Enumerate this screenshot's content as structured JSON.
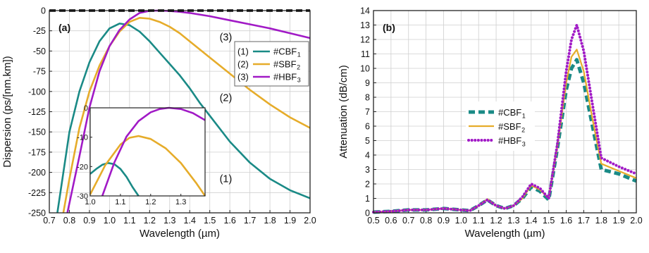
{
  "colors": {
    "cbf": "#1a8a86",
    "sbf": "#e6ac2a",
    "hbf": "#a11ac6",
    "zero": "#000000"
  },
  "chart_data": [
    {
      "type": "line",
      "panel_label": "(a)",
      "xlabel": "Wavelength (µm)",
      "ylabel": "Dispersion (ps/[nm.km])",
      "xlim": [
        0.7,
        2.0
      ],
      "ylim": [
        -250,
        0
      ],
      "xticks": [
        "0.7",
        "0.8",
        "0.9",
        "1.0",
        "1.1",
        "1.2",
        "1.3",
        "1.4",
        "1.5",
        "1.6",
        "1.7",
        "1.8",
        "1.9",
        "2.0"
      ],
      "yticks": [
        "0",
        "-25",
        "-50",
        "-75",
        "-100",
        "-125",
        "-150",
        "-175",
        "-200",
        "-225",
        "-250"
      ],
      "grid": true,
      "legend_position": "top-right",
      "legend": [
        {
          "num": "(1)",
          "name": "#CBF",
          "sub": "1",
          "color": "cbf"
        },
        {
          "num": "(2)",
          "name": "#SBF",
          "sub": "2",
          "color": "sbf"
        },
        {
          "num": "(3)",
          "name": "#HBF",
          "sub": "3",
          "color": "hbf"
        }
      ],
      "annotations": [
        {
          "text": "(3)",
          "x": 1.58,
          "y": -37
        },
        {
          "text": "(2)",
          "x": 1.58,
          "y": -112
        },
        {
          "text": "(1)",
          "x": 1.58,
          "y": -212
        }
      ],
      "series": [
        {
          "color": "cbf",
          "style": "solid",
          "x": [
            0.74,
            0.8,
            0.85,
            0.9,
            0.95,
            1.0,
            1.05,
            1.1,
            1.15,
            1.2,
            1.25,
            1.3,
            1.35,
            1.4,
            1.45,
            1.5,
            1.6,
            1.7,
            1.8,
            1.9,
            2.0
          ],
          "y": [
            -250,
            -150,
            -100,
            -64,
            -38,
            -22,
            -16,
            -18,
            -26,
            -38,
            -52,
            -66,
            -80,
            -96,
            -114,
            -130,
            -162,
            -188,
            -208,
            -222,
            -232
          ]
        },
        {
          "color": "sbf",
          "style": "solid",
          "x": [
            0.77,
            0.8,
            0.85,
            0.9,
            0.95,
            1.0,
            1.05,
            1.1,
            1.15,
            1.2,
            1.25,
            1.3,
            1.35,
            1.4,
            1.5,
            1.6,
            1.7,
            1.8,
            1.9,
            2.0
          ],
          "y": [
            -250,
            -208,
            -145,
            -100,
            -68,
            -44,
            -26,
            -14,
            -9,
            -10,
            -14,
            -20,
            -28,
            -38,
            -58,
            -78,
            -98,
            -116,
            -132,
            -145
          ]
        },
        {
          "color": "hbf",
          "style": "solid",
          "x": [
            0.79,
            0.85,
            0.9,
            0.95,
            1.0,
            1.05,
            1.1,
            1.15,
            1.2,
            1.25,
            1.3,
            1.35,
            1.4,
            1.5,
            1.6,
            1.7,
            1.8,
            1.9,
            2.0
          ],
          "y": [
            -250,
            -180,
            -120,
            -75,
            -44,
            -24,
            -11,
            -3,
            -0.3,
            0,
            -0.5,
            -1.5,
            -3,
            -7,
            -12,
            -17,
            -22,
            -28,
            -34
          ]
        },
        {
          "color": "zero",
          "style": "dashed",
          "x": [
            0.7,
            2.0
          ],
          "y": [
            0,
            0
          ]
        }
      ],
      "inset": {
        "xlim": [
          1.0,
          1.38
        ],
        "ylim": [
          -30,
          0
        ],
        "xticks": [
          "1.0",
          "1.1",
          "1.2",
          "1.3"
        ],
        "yticks": [
          "0",
          "-10",
          "-20",
          "-30"
        ],
        "series": [
          {
            "color": "cbf",
            "x": [
              1.0,
              1.02,
              1.04,
              1.06,
              1.08,
              1.1,
              1.12,
              1.14,
              1.16
            ],
            "y": [
              -22.5,
              -20.8,
              -19.4,
              -18.8,
              -19.2,
              -20.8,
              -23.5,
              -27,
              -30
            ]
          },
          {
            "color": "sbf",
            "x": [
              1.0,
              1.05,
              1.1,
              1.13,
              1.16,
              1.2,
              1.25,
              1.3,
              1.35,
              1.38
            ],
            "y": [
              -29.5,
              -19.5,
              -12.5,
              -10.2,
              -9.6,
              -10.6,
              -13.8,
              -18.8,
              -25.5,
              -30
            ]
          },
          {
            "color": "hbf",
            "x": [
              1.04,
              1.08,
              1.12,
              1.16,
              1.2,
              1.23,
              1.26,
              1.3,
              1.34,
              1.38
            ],
            "y": [
              -30,
              -18.6,
              -9.8,
              -4.5,
              -1.5,
              -0.4,
              0,
              -0.4,
              -1.8,
              -4.2
            ]
          }
        ]
      }
    },
    {
      "type": "line",
      "panel_label": "(b)",
      "xlabel": "Wavelength (µm)",
      "ylabel": "Attenuation (dB/cm)",
      "xlim": [
        0.5,
        2.0
      ],
      "ylim": [
        0,
        14
      ],
      "xticks": [
        "0.5",
        "0.6",
        "0.7",
        "0.8",
        "0.9",
        "1.0",
        "1.1",
        "1.2",
        "1.3",
        "1.4",
        "1.5",
        "1.6",
        "1.7",
        "1.8",
        "1.9",
        "2.0"
      ],
      "yticks": [
        "0",
        "1",
        "2",
        "3",
        "4",
        "5",
        "6",
        "7",
        "8",
        "9",
        "10",
        "11",
        "12",
        "13",
        "14"
      ],
      "grid": true,
      "legend_position": "center-left",
      "legend": [
        {
          "name": "#CBF",
          "sub": "1",
          "color": "cbf",
          "style": "dashed"
        },
        {
          "name": "#SBF",
          "sub": "2",
          "color": "sbf",
          "style": "solid"
        },
        {
          "name": "#HBF",
          "sub": "3",
          "color": "hbf",
          "style": "dotted"
        }
      ],
      "series": [
        {
          "color": "cbf",
          "style": "dashed",
          "x": [
            0.5,
            0.6,
            0.7,
            0.8,
            0.9,
            1.0,
            1.05,
            1.1,
            1.15,
            1.2,
            1.25,
            1.3,
            1.35,
            1.4,
            1.45,
            1.5,
            1.55,
            1.6,
            1.63,
            1.66,
            1.7,
            1.75,
            1.8,
            1.9,
            2.0
          ],
          "y": [
            0.05,
            0.1,
            0.2,
            0.2,
            0.3,
            0.2,
            0.15,
            0.5,
            0.9,
            0.5,
            0.3,
            0.5,
            1.0,
            1.8,
            1.5,
            0.9,
            4.5,
            8.5,
            10.0,
            10.6,
            9.0,
            6.0,
            3.0,
            2.7,
            2.2
          ]
        },
        {
          "color": "sbf",
          "style": "solid",
          "x": [
            0.5,
            0.6,
            0.7,
            0.8,
            0.9,
            1.0,
            1.05,
            1.1,
            1.15,
            1.2,
            1.25,
            1.3,
            1.35,
            1.4,
            1.45,
            1.5,
            1.55,
            1.6,
            1.63,
            1.66,
            1.7,
            1.75,
            1.8,
            1.9,
            2.0
          ],
          "y": [
            0.05,
            0.1,
            0.2,
            0.2,
            0.3,
            0.2,
            0.15,
            0.5,
            0.95,
            0.5,
            0.3,
            0.5,
            1.0,
            1.9,
            1.6,
            1.0,
            4.6,
            9.0,
            10.8,
            11.3,
            9.8,
            6.5,
            3.4,
            2.9,
            2.4
          ]
        },
        {
          "color": "hbf",
          "style": "dotted",
          "x": [
            0.5,
            0.6,
            0.7,
            0.8,
            0.9,
            1.0,
            1.05,
            1.1,
            1.15,
            1.2,
            1.25,
            1.3,
            1.35,
            1.4,
            1.45,
            1.5,
            1.55,
            1.6,
            1.63,
            1.66,
            1.7,
            1.75,
            1.8,
            1.9,
            2.0
          ],
          "y": [
            0.05,
            0.1,
            0.2,
            0.2,
            0.3,
            0.2,
            0.15,
            0.5,
            0.9,
            0.5,
            0.3,
            0.5,
            1.1,
            2.0,
            1.7,
            1.0,
            4.8,
            9.8,
            12.0,
            13.0,
            11.2,
            7.5,
            3.8,
            3.2,
            2.7
          ]
        }
      ]
    }
  ]
}
